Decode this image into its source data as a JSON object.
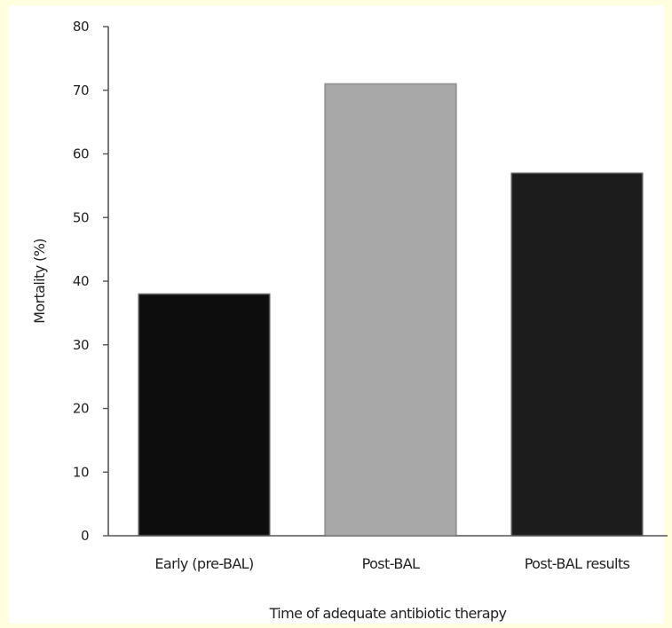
{
  "chart_data": {
    "type": "bar",
    "title": "",
    "xlabel": "Time of adequate antibiotic therapy",
    "ylabel": "Mortality (%)",
    "categories": [
      "Early (pre-BAL)",
      "Post-BAL",
      "Post-BAL results"
    ],
    "values": [
      38,
      71,
      57
    ],
    "ylim": [
      0,
      80
    ],
    "yticks": [
      "0",
      "10",
      "20",
      "30",
      "40",
      "50",
      "60",
      "70",
      "80"
    ],
    "bar_colors": [
      "#0a0a0a",
      "#a8a8a8",
      "#1c1c1c"
    ],
    "grid": false,
    "legend": "none"
  }
}
